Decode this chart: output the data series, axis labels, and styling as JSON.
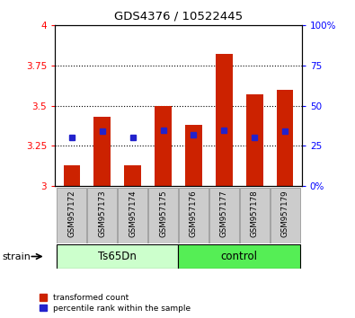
{
  "title": "GDS4376 / 10522445",
  "samples": [
    "GSM957172",
    "GSM957173",
    "GSM957174",
    "GSM957175",
    "GSM957176",
    "GSM957177",
    "GSM957178",
    "GSM957179"
  ],
  "red_values": [
    3.13,
    3.43,
    3.13,
    3.5,
    3.38,
    3.82,
    3.57,
    3.6
  ],
  "blue_values": [
    3.3,
    3.34,
    3.3,
    3.35,
    3.32,
    3.35,
    3.3,
    3.34
  ],
  "ylim_left": [
    3.0,
    4.0
  ],
  "ylim_right": [
    0,
    100
  ],
  "yticks_left": [
    3.0,
    3.25,
    3.5,
    3.75,
    4.0
  ],
  "ytick_labels_left": [
    "3",
    "3.25",
    "3.5",
    "3.75",
    "4"
  ],
  "yticks_right": [
    0,
    25,
    50,
    75,
    100
  ],
  "ytick_labels_right": [
    "0%",
    "25",
    "50",
    "75",
    "100%"
  ],
  "grid_lines": [
    3.25,
    3.5,
    3.75
  ],
  "bar_color": "#cc2200",
  "dot_color": "#2222cc",
  "bar_width": 0.55,
  "base_value": 3.0,
  "legend_red": "transformed count",
  "legend_blue": "percentile rank within the sample",
  "ts65dn_color": "#ccffcc",
  "control_color": "#55ee55",
  "xticklabel_bg": "#cccccc",
  "strain_label": "strain"
}
